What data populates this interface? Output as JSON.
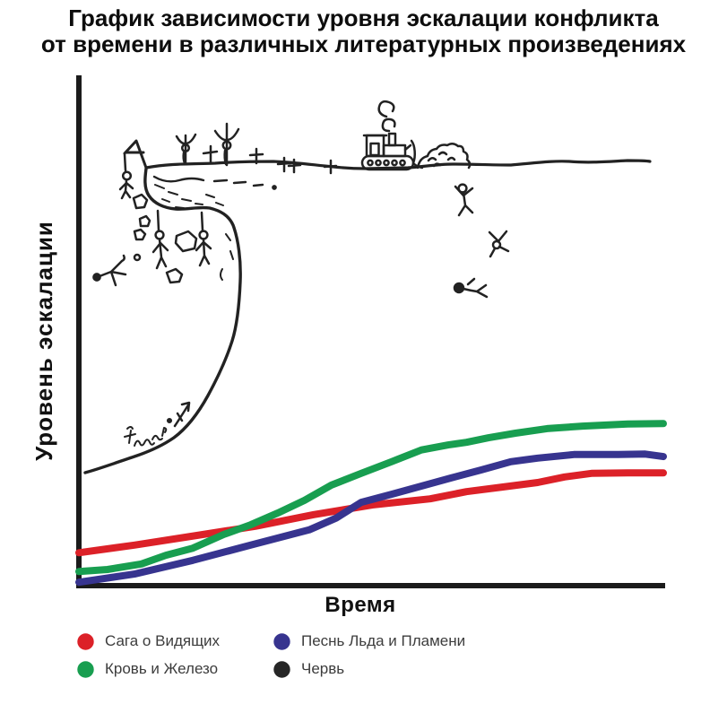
{
  "title": {
    "line1": "График зависимости уровня эскалации конфликта",
    "line2": "от времени в различных литературных произведениях"
  },
  "axes": {
    "y_label": "Уровень эскалации",
    "x_label": "Время",
    "ticks": "none"
  },
  "legend": {
    "position": "bottom",
    "items": [
      {
        "label": "Сага о Видящих",
        "color": "#dc2128"
      },
      {
        "label": "Кровь и Железо",
        "color": "#189e50"
      },
      {
        "label": "Песнь Льда и Пламени",
        "color": "#37348f"
      },
      {
        "label": "Червь",
        "color": "#262626"
      }
    ]
  },
  "chart_data": {
    "type": "line",
    "title": "График зависимости уровня эскалации конфликта от времени в различных литературных произведениях",
    "xlabel": "Время",
    "ylabel": "Уровень эскалации",
    "grid": false,
    "legend_position": "bottom",
    "axis_note": "Both axes are unlabeled; x values are fractions 0-1 of the time axis, y values are 0-100 of the visible escalation scale (100 = top of plot).",
    "series": [
      {
        "name": "Сага о Видящих",
        "color": "#dc2128",
        "x": [
          0,
          0.095,
          0.202,
          0.302,
          0.402,
          0.502,
          0.601,
          0.663,
          0.724,
          0.785,
          0.831,
          0.877,
          0.939,
          1.0
        ],
        "y": [
          6.3,
          7.8,
          9.7,
          11.5,
          13.8,
          15.7,
          16.9,
          18.3,
          19.2,
          20.1,
          21.2,
          21.9,
          22.0,
          22.0
        ]
      },
      {
        "name": "Кровь и Железо",
        "color": "#189e50",
        "x": [
          0,
          0.049,
          0.107,
          0.149,
          0.195,
          0.248,
          0.294,
          0.34,
          0.386,
          0.432,
          0.483,
          0.535,
          0.586,
          0.632,
          0.663,
          0.701,
          0.747,
          0.801,
          0.862,
          0.939,
          1.0
        ],
        "y": [
          2.6,
          3.0,
          4.1,
          5.8,
          7.2,
          9.9,
          11.8,
          14.1,
          16.6,
          19.6,
          21.9,
          24.2,
          26.5,
          27.5,
          28.0,
          28.9,
          29.8,
          30.7,
          31.2,
          31.6,
          31.7
        ]
      },
      {
        "name": "Песнь Льда и Пламени",
        "color": "#37348f",
        "x": [
          0,
          0.095,
          0.195,
          0.294,
          0.394,
          0.44,
          0.483,
          0.535,
          0.586,
          0.637,
          0.689,
          0.739,
          0.785,
          0.847,
          0.923,
          0.969,
          1.0
        ],
        "y": [
          0.5,
          2.1,
          4.8,
          7.8,
          10.8,
          13.1,
          16.2,
          17.8,
          19.4,
          21.0,
          22.6,
          24.2,
          24.9,
          25.6,
          25.6,
          25.7,
          25.2
        ]
      },
      {
        "name": "Червь",
        "color": "#262626",
        "draw": false,
        "rendered_as": "hand-drawn doodle",
        "x": [
          0.011,
          0.064,
          0.118,
          0.163,
          0.202,
          0.233,
          0.255,
          0.268,
          0.275,
          0.276,
          0.273
        ],
        "y": [
          22.0,
          24.0,
          26.1,
          28.9,
          33.2,
          38.4,
          44.1,
          49.7,
          56.8,
          63.0,
          68.3
        ],
        "note": "Line climbs a sheer overhanging cliff and leaves the scale: a plateau at escalation ≈ 83 (top of the plot) runs across the remaining ~85% of the time axis."
      }
    ],
    "annotations": [
      "виселица с повешенным на пике обрыва",
      "столбы с фигурами и могильные кресты на плато",
      "бульдозер, сгребающий кучу тел к краю обрыва",
      "человечки, падающие с обрыва, и упавший внизу",
      "двое повешенных и падающие камни под козырьком скалы",
      "маленькая стрелка вверх и каракули у подножия склона",
      "пунктирная линия трещины у края плато"
    ]
  }
}
